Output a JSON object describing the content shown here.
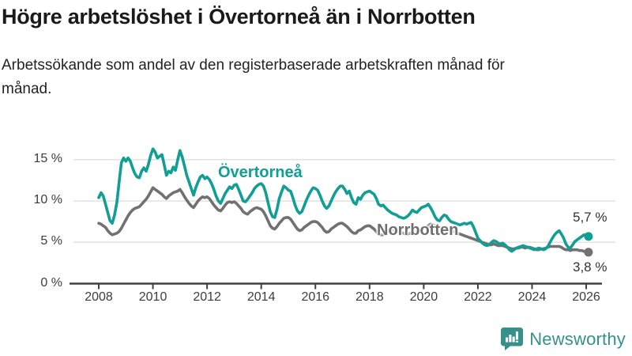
{
  "header": {
    "title": "Högre arbetslöshet i Övertorneå än i Norrbotten",
    "subtitle": "Arbetssökande som andel av den registerbaserade arbetskraften månad för månad."
  },
  "footer": {
    "brand": "Newsworthy",
    "logo_icon": "bar-chart-speech-bubble"
  },
  "colors": {
    "overtornea": "#119e94",
    "norrbotten": "#717171",
    "norrbotten_label": "#6e6e6e",
    "grid": "#e2e2e2",
    "axis": "#404040",
    "tick_text": "#3d3d3d",
    "logo": "#35918a"
  },
  "chart_data": {
    "type": "line",
    "title": "Högre arbetslöshet i Övertorneå än i Norrbotten",
    "xlabel": "",
    "ylabel": "",
    "x_unit": "month",
    "x_start": "2008-01",
    "x_end": "2026-02",
    "ylim": [
      0,
      17
    ],
    "grid": "horizontal",
    "legend_position": "inline-labels",
    "yticks": [
      {
        "value": 0,
        "label": "0 %"
      },
      {
        "value": 5,
        "label": "5 %"
      },
      {
        "value": 10,
        "label": "10 %"
      },
      {
        "value": 15,
        "label": "15 %"
      }
    ],
    "xticks": [
      {
        "year": 2008,
        "label": "2008"
      },
      {
        "year": 2010,
        "label": "2010"
      },
      {
        "year": 2012,
        "label": "2012"
      },
      {
        "year": 2014,
        "label": "2014"
      },
      {
        "year": 2016,
        "label": "2016"
      },
      {
        "year": 2018,
        "label": "2018"
      },
      {
        "year": 2020,
        "label": "2020"
      },
      {
        "year": 2022,
        "label": "2022"
      },
      {
        "year": 2024,
        "label": "2024"
      },
      {
        "year": 2026,
        "label": "2026"
      }
    ],
    "series": [
      {
        "key": "overtornea",
        "name": "Övertorneå",
        "color": "#119e94",
        "end_label": "5,7 %",
        "end_value": 5.7,
        "values": [
          10.4,
          11.0,
          10.6,
          9.6,
          8.6,
          7.6,
          7.3,
          8.3,
          9.8,
          12.2,
          14.6,
          15.2,
          14.8,
          15.2,
          14.8,
          14.0,
          13.3,
          12.9,
          12.8,
          13.6,
          14.0,
          13.6,
          14.4,
          15.5,
          16.3,
          15.9,
          15.2,
          15.4,
          15.6,
          14.4,
          13.1,
          13.6,
          13.4,
          14.1,
          13.7,
          15.0,
          16.1,
          15.3,
          14.2,
          13.1,
          12.3,
          11.5,
          10.7,
          11.6,
          12.3,
          12.9,
          13.1,
          12.7,
          12.9,
          12.6,
          12.1,
          11.4,
          10.6,
          10.0,
          9.7,
          10.3,
          10.9,
          11.3,
          11.7,
          11.5,
          11.9,
          12.0,
          11.4,
          10.7,
          10.0,
          9.9,
          10.2,
          10.6,
          11.0,
          11.5,
          11.8,
          12.0,
          12.1,
          11.8,
          11.0,
          9.8,
          8.7,
          8.1,
          8.0,
          9.0,
          10.3,
          11.1,
          11.8,
          11.6,
          11.3,
          11.2,
          10.4,
          9.5,
          8.8,
          8.5,
          8.7,
          9.4,
          10.1,
          10.7,
          11.2,
          11.6,
          11.5,
          11.3,
          10.7,
          10.0,
          9.4,
          9.1,
          9.4,
          10.0,
          10.6,
          11.1,
          11.5,
          11.8,
          11.8,
          11.4,
          10.9,
          11.2,
          10.4,
          9.8,
          9.6,
          10.4,
          10.2,
          10.7,
          11.0,
          11.1,
          11.2,
          11.0,
          10.8,
          10.3,
          9.6,
          9.4,
          9.5,
          9.2,
          8.9,
          8.7,
          8.5,
          8.4,
          8.3,
          8.1,
          8.0,
          7.9,
          8.0,
          8.2,
          8.5,
          8.9,
          8.7,
          8.6,
          8.9,
          9.2,
          9.3,
          9.4,
          9.6,
          9.2,
          8.7,
          8.1,
          7.7,
          7.6,
          8.0,
          8.3,
          8.2,
          7.8,
          7.5,
          7.4,
          7.3,
          7.2,
          7.1,
          7.2,
          7.3,
          7.2,
          7.3,
          7.4,
          6.9,
          6.2,
          5.5,
          5.2,
          4.9,
          4.7,
          4.6,
          4.7,
          5.0,
          5.2,
          5.1,
          4.9,
          4.8,
          4.9,
          4.7,
          4.4,
          4.1,
          3.9,
          4.1,
          4.3,
          4.4,
          4.5,
          4.6,
          4.5,
          4.4,
          4.3,
          4.2,
          4.1,
          4.2,
          4.3,
          4.2,
          4.1,
          4.2,
          4.5,
          5.0,
          5.5,
          5.9,
          6.2,
          6.4,
          6.0,
          5.5,
          4.8,
          4.4,
          4.3,
          4.7,
          5.1,
          5.3,
          5.5,
          5.7,
          5.9,
          5.8,
          5.7
        ]
      },
      {
        "key": "norrbotten",
        "name": "Norrbotten",
        "color": "#717171",
        "end_label": "3,8 %",
        "end_value": 3.8,
        "values": [
          7.3,
          7.2,
          7.0,
          6.8,
          6.4,
          6.1,
          5.9,
          6.0,
          6.1,
          6.3,
          6.7,
          7.2,
          7.7,
          8.2,
          8.6,
          8.9,
          9.1,
          9.2,
          9.3,
          9.6,
          9.9,
          10.2,
          10.6,
          11.1,
          11.6,
          11.4,
          11.2,
          11.0,
          10.8,
          10.5,
          10.3,
          10.6,
          10.8,
          11.0,
          11.1,
          11.2,
          11.4,
          11.0,
          10.5,
          10.1,
          9.7,
          9.4,
          9.2,
          9.6,
          10.0,
          10.3,
          10.5,
          10.4,
          10.5,
          10.3,
          9.9,
          9.5,
          9.2,
          8.9,
          8.8,
          9.1,
          9.5,
          9.8,
          9.9,
          9.8,
          9.9,
          9.7,
          9.4,
          9.1,
          8.7,
          8.5,
          8.4,
          8.7,
          8.9,
          9.1,
          9.2,
          9.1,
          9.0,
          8.7,
          8.2,
          7.6,
          7.0,
          6.7,
          6.6,
          6.9,
          7.3,
          7.6,
          7.9,
          8.0,
          8.0,
          7.8,
          7.4,
          7.0,
          6.6,
          6.4,
          6.5,
          6.8,
          7.0,
          7.2,
          7.4,
          7.5,
          7.5,
          7.4,
          7.1,
          6.8,
          6.4,
          6.2,
          6.3,
          6.6,
          6.8,
          7.0,
          7.2,
          7.3,
          7.3,
          7.1,
          6.9,
          6.6,
          6.3,
          6.1,
          6.1,
          6.4,
          6.5,
          6.7,
          6.9,
          7.0,
          7.0,
          6.8,
          6.6,
          6.3,
          6.0,
          5.9,
          5.9,
          6.1,
          6.3,
          6.4,
          6.5,
          6.5,
          6.5,
          6.4,
          6.2,
          6.1,
          6.0,
          6.0,
          6.1,
          6.2,
          6.2,
          6.3,
          6.4,
          6.6,
          6.7,
          6.8,
          7.0,
          7.2,
          7.1,
          7.0,
          6.9,
          6.8,
          6.7,
          6.7,
          6.6,
          6.6,
          6.5,
          6.4,
          6.2,
          6.1,
          6.0,
          5.9,
          5.8,
          5.7,
          5.6,
          5.5,
          5.4,
          5.3,
          5.2,
          5.1,
          5.0,
          4.9,
          4.8,
          4.7,
          4.7,
          4.8,
          4.7,
          4.6,
          4.6,
          4.6,
          4.5,
          4.4,
          4.3,
          4.2,
          4.2,
          4.3,
          4.3,
          4.4,
          4.4,
          4.3,
          4.4,
          4.4,
          4.3,
          4.2,
          4.1,
          4.1,
          4.2,
          4.2,
          4.3,
          4.4,
          4.5,
          4.5,
          4.5,
          4.5,
          4.5,
          4.4,
          4.2,
          4.1,
          4.1,
          4.0,
          4.1,
          4.1,
          4.1,
          4.0,
          4.0,
          3.9,
          3.9,
          3.8
        ]
      }
    ]
  }
}
